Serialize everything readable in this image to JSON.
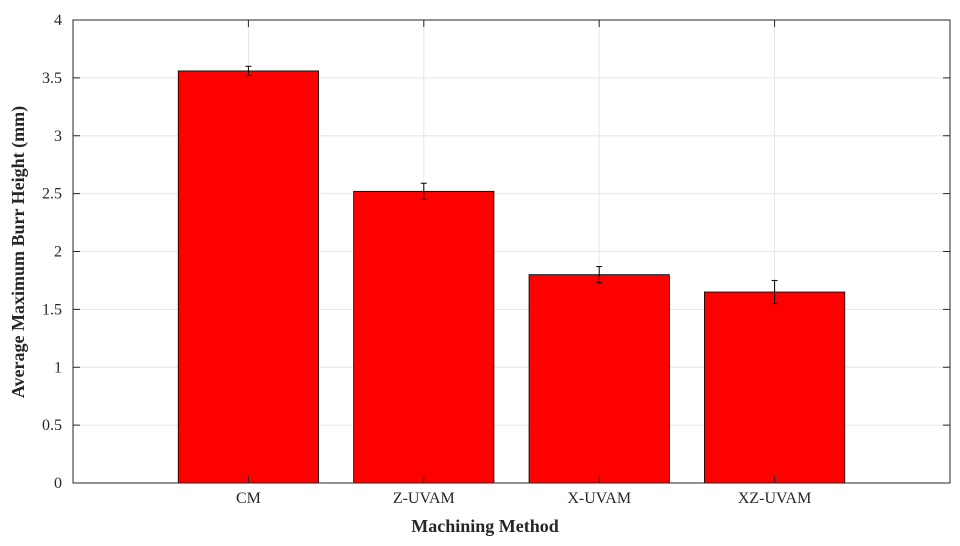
{
  "chart_data": {
    "type": "bar",
    "title": "",
    "xlabel": "Machining Method",
    "ylabel": "Average Maximum Burr Height (mm)",
    "categories": [
      "CM",
      "Z-UVAM",
      "X-UVAM",
      "XZ-UVAM"
    ],
    "values": [
      3.56,
      2.52,
      1.8,
      1.65
    ],
    "error": [
      0.04,
      0.07,
      0.07,
      0.1
    ],
    "ylim": [
      0,
      4
    ],
    "yticks": [
      0,
      0.5,
      1,
      1.5,
      2,
      2.5,
      3,
      3.5,
      4
    ],
    "ytick_labels": [
      "0",
      "0.5",
      "1",
      "1.5",
      "2",
      "2.5",
      "3",
      "3.5",
      "4"
    ],
    "grid": true,
    "legend": "none",
    "bar_color": "#ff0000",
    "bar_edge_color": "#000000"
  }
}
